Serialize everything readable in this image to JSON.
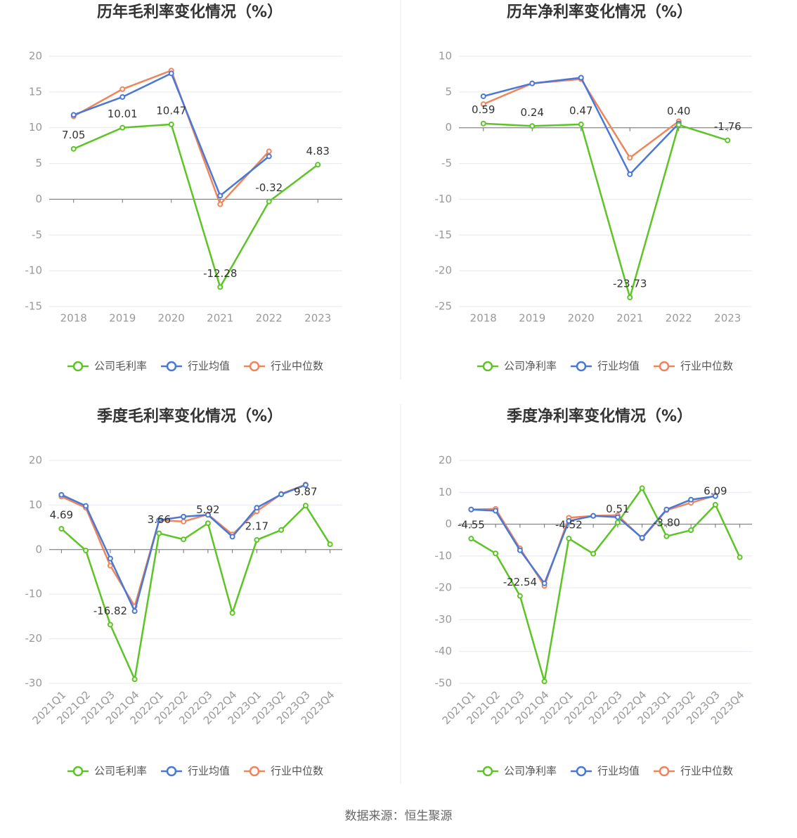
{
  "chart_data": [
    {
      "type": "line",
      "title": "历年毛利率变化情况（%）",
      "categories": [
        "2018",
        "2019",
        "2020",
        "2021",
        "2022",
        "2023"
      ],
      "series": [
        {
          "name": "公司毛利率",
          "color": "#5cc425",
          "values": [
            7.05,
            10.01,
            10.47,
            -12.28,
            -0.32,
            4.83
          ],
          "value_labels": [
            "7.05",
            "10.01",
            "10.47",
            "-12.28",
            "-0.32",
            "4.83"
          ]
        },
        {
          "name": "行业均值",
          "color": "#4a78d6",
          "values": [
            11.8,
            14.3,
            17.6,
            0.5,
            6.0,
            null
          ]
        },
        {
          "name": "行业中位数",
          "color": "#f0855c",
          "values": [
            11.6,
            15.4,
            18.0,
            -0.7,
            6.7,
            null
          ]
        }
      ],
      "ylim": [
        -15,
        20
      ],
      "yticks": [
        -15,
        -10,
        -5,
        0,
        5,
        10,
        15,
        20
      ],
      "grid": true,
      "legend": "bottom"
    },
    {
      "type": "line",
      "title": "历年净利率变化情况（%）",
      "categories": [
        "2018",
        "2019",
        "2020",
        "2021",
        "2022",
        "2023"
      ],
      "series": [
        {
          "name": "公司净利率",
          "color": "#5cc425",
          "values": [
            0.59,
            0.24,
            0.47,
            -23.73,
            0.4,
            -1.76
          ],
          "value_labels": [
            "0.59",
            "0.24",
            "0.47",
            "-23.73",
            "0.40",
            "-1.76"
          ]
        },
        {
          "name": "行业均值",
          "color": "#4a78d6",
          "values": [
            4.4,
            6.2,
            7.0,
            -6.5,
            0.6,
            null
          ]
        },
        {
          "name": "行业中位数",
          "color": "#f0855c",
          "values": [
            3.3,
            6.2,
            6.8,
            -4.2,
            0.9,
            null
          ]
        }
      ],
      "ylim": [
        -25,
        10
      ],
      "yticks": [
        -25,
        -20,
        -15,
        -10,
        -5,
        0,
        5,
        10
      ],
      "grid": true,
      "legend": "bottom"
    },
    {
      "type": "line",
      "title": "季度毛利率变化情况（%）",
      "categories": [
        "2021Q1",
        "2021Q2",
        "2021Q3",
        "2021Q4",
        "2022Q1",
        "2022Q2",
        "2022Q3",
        "2022Q4",
        "2023Q1",
        "2023Q2",
        "2023Q3",
        "2023Q4"
      ],
      "series": [
        {
          "name": "公司毛利率",
          "color": "#5cc425",
          "values": [
            4.69,
            -0.2,
            -16.82,
            -29.1,
            3.66,
            2.3,
            5.92,
            -14.2,
            2.17,
            4.4,
            9.87,
            1.2
          ],
          "value_labels": [
            "4.69",
            null,
            "-16.82",
            null,
            "3.66",
            null,
            "5.92",
            null,
            "2.17",
            null,
            "9.87",
            null
          ]
        },
        {
          "name": "行业均值",
          "color": "#4a78d6",
          "values": [
            12.3,
            9.8,
            -2.0,
            -13.8,
            6.6,
            7.4,
            7.8,
            2.9,
            9.4,
            12.4,
            14.5,
            null
          ]
        },
        {
          "name": "行业中位数",
          "color": "#f0855c",
          "values": [
            11.9,
            9.4,
            -3.6,
            -12.7,
            6.6,
            6.3,
            7.9,
            3.4,
            8.6,
            12.5,
            14.6,
            null
          ]
        }
      ],
      "ylim": [
        -30,
        20
      ],
      "yticks": [
        -30,
        -20,
        -10,
        0,
        10,
        20
      ],
      "grid": true,
      "legend": "bottom"
    },
    {
      "type": "line",
      "title": "季度净利率变化情况（%）",
      "categories": [
        "2021Q1",
        "2021Q2",
        "2021Q3",
        "2021Q4",
        "2022Q1",
        "2022Q2",
        "2022Q3",
        "2022Q4",
        "2023Q1",
        "2023Q2",
        "2023Q3",
        "2023Q4"
      ],
      "series": [
        {
          "name": "公司净利率",
          "color": "#5cc425",
          "values": [
            -4.55,
            -9.2,
            -22.54,
            -49.4,
            -4.52,
            -9.3,
            0.51,
            11.3,
            -3.8,
            -1.9,
            6.09,
            -10.4
          ],
          "value_labels": [
            "-4.55",
            null,
            "-22.54",
            null,
            "-4.52",
            null,
            "0.51",
            null,
            "-3.80",
            null,
            "6.09",
            null
          ]
        },
        {
          "name": "行业均值",
          "color": "#4a78d6",
          "values": [
            4.6,
            4.2,
            -8.2,
            -18.6,
            1.0,
            2.6,
            2.2,
            -4.3,
            4.6,
            7.7,
            8.8,
            null
          ]
        },
        {
          "name": "行业中位数",
          "color": "#f0855c",
          "values": [
            4.6,
            4.8,
            -7.6,
            -19.4,
            2.0,
            2.6,
            2.8,
            -4.5,
            4.4,
            6.7,
            9.0,
            null
          ]
        }
      ],
      "ylim": [
        -50,
        20
      ],
      "yticks": [
        -50,
        -40,
        -30,
        -20,
        -10,
        0,
        10,
        20
      ],
      "grid": true,
      "legend": "bottom"
    }
  ],
  "source": "数据来源：恒生聚源"
}
